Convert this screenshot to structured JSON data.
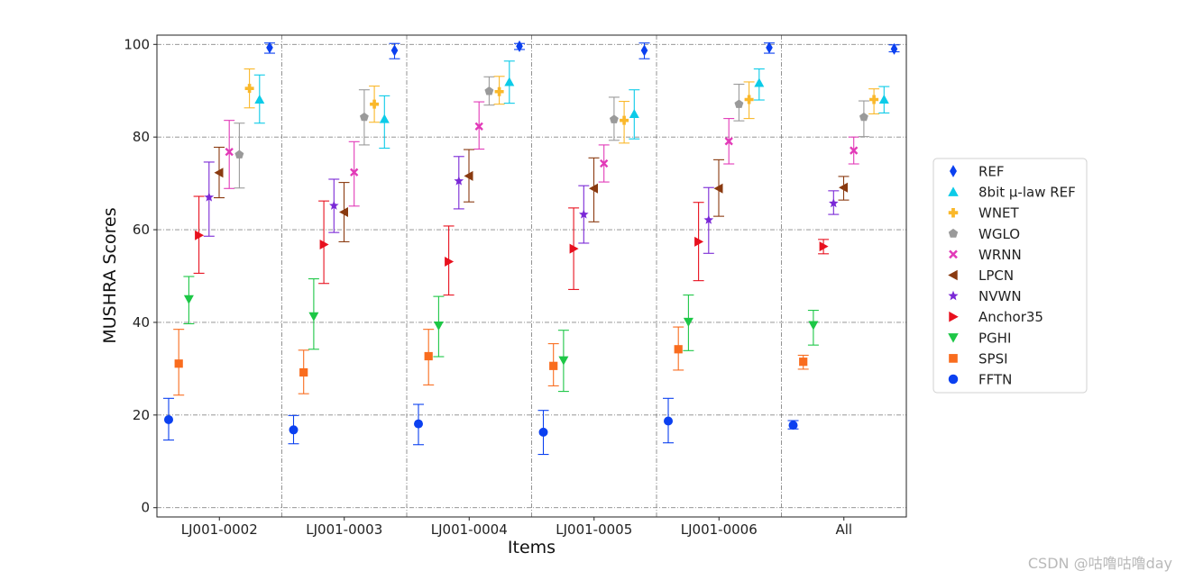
{
  "chart_data": {
    "type": "scatter",
    "subtype": "point-with-error-bars",
    "xlabel": "Items",
    "ylabel": "MUSHRA Scores",
    "categories": [
      "LJ001-0002",
      "LJ001-0003",
      "LJ001-0004",
      "LJ001-0005",
      "LJ001-0006",
      "All"
    ],
    "ylim": [
      -2,
      102
    ],
    "yticks": [
      0,
      20,
      40,
      60,
      80,
      100
    ],
    "grid": "dash-dot",
    "legend_position": "center-right",
    "series": [
      {
        "name": "FFTN",
        "color": "#0b40f0",
        "marker": "circle",
        "values": [
          19,
          16.8,
          18.1,
          16.3,
          18.7,
          17.8
        ],
        "err_low": [
          14.6,
          13.8,
          13.6,
          11.5,
          14,
          17
        ],
        "err_high": [
          23.6,
          19.9,
          22.3,
          21,
          23.6,
          18.8
        ]
      },
      {
        "name": "SPSI",
        "color": "#f96c1e",
        "marker": "square",
        "values": [
          31.1,
          29.2,
          32.7,
          30.6,
          34.2,
          31.5
        ],
        "err_low": [
          24.3,
          24.6,
          26.5,
          26.3,
          29.7,
          29.9
        ],
        "err_high": [
          38.5,
          34,
          38.5,
          35.4,
          39,
          32.9
        ]
      },
      {
        "name": "PGHI",
        "color": "#1dc746",
        "marker": "triangle-down",
        "values": [
          45,
          41.3,
          39.3,
          31.8,
          40.1,
          39.4
        ],
        "err_low": [
          39.7,
          34.2,
          32.6,
          25.1,
          33.9,
          35.1
        ],
        "err_high": [
          49.9,
          49.4,
          45.6,
          38.3,
          45.9,
          42.6
        ]
      },
      {
        "name": "Anchor35",
        "color": "#e8101e",
        "marker": "triangle-right",
        "values": [
          58.8,
          56.8,
          53.1,
          55.9,
          57.4,
          56.4
        ],
        "err_low": [
          50.6,
          48.4,
          45.9,
          47.1,
          49,
          54.8
        ],
        "err_high": [
          67.2,
          66.2,
          60.8,
          64.7,
          65.9,
          57.9
        ]
      },
      {
        "name": "NVWN",
        "color": "#7a28d6",
        "marker": "star",
        "values": [
          67,
          65.2,
          70.5,
          63.3,
          62.1,
          65.7
        ],
        "err_low": [
          58.6,
          59.4,
          64.5,
          57.1,
          54.9,
          63.3
        ],
        "err_high": [
          74.6,
          70.9,
          75.8,
          69.5,
          69.1,
          68.4
        ]
      },
      {
        "name": "LPCN",
        "color": "#8a3a10",
        "marker": "triangle-left",
        "values": [
          72.3,
          63.8,
          71.6,
          68.9,
          68.9,
          69.1
        ],
        "err_low": [
          66.9,
          57.4,
          66,
          61.7,
          62.9,
          66.4
        ],
        "err_high": [
          77.8,
          70.2,
          77.3,
          75.5,
          75.1,
          71.5
        ]
      },
      {
        "name": "WRNN",
        "color": "#e23ab8",
        "marker": "x",
        "values": [
          76.8,
          72.4,
          82.3,
          74.3,
          79.1,
          77.1
        ],
        "err_low": [
          68.9,
          65.1,
          77.4,
          70.3,
          74.2,
          74.2
        ],
        "err_high": [
          83.6,
          79,
          87.6,
          78.3,
          84,
          80
        ]
      },
      {
        "name": "WGLO",
        "color": "#9a9a9a",
        "marker": "pentagon",
        "values": [
          76.2,
          84.3,
          89.9,
          83.8,
          87.1,
          84.3
        ],
        "err_low": [
          69,
          78.3,
          86.9,
          79.3,
          83.5,
          80.1
        ],
        "err_high": [
          83,
          90.2,
          93,
          88.6,
          91.4,
          87.8
        ]
      },
      {
        "name": "WNET",
        "color": "#fab82a",
        "marker": "plus",
        "values": [
          90.5,
          87.1,
          89.8,
          83.6,
          88.1,
          88.1
        ],
        "err_low": [
          86.3,
          83.2,
          87.1,
          78.7,
          84,
          85
        ],
        "err_high": [
          94.7,
          91,
          93.1,
          87.7,
          91.9,
          90.4
        ]
      },
      {
        "name": "8bit µ-law REF",
        "color": "#0ccbe8",
        "marker": "triangle-up",
        "values": [
          88.1,
          83.9,
          91.9,
          85,
          91.7,
          88.1
        ],
        "err_low": [
          83,
          77.6,
          87.3,
          79.6,
          88,
          85.2
        ],
        "err_high": [
          93.4,
          88.9,
          96.4,
          90.2,
          94.7,
          90.9
        ]
      },
      {
        "name": "REF",
        "color": "#0b40f0",
        "marker": "thin-diamond",
        "values": [
          99.3,
          98.7,
          99.6,
          98.7,
          99.3,
          99
        ],
        "err_low": [
          98.1,
          96.9,
          98.9,
          96.9,
          98.1,
          98.4
        ],
        "err_high": [
          100.3,
          100.2,
          100.2,
          100.3,
          100.3,
          99.9
        ]
      }
    ]
  },
  "legend_order": [
    "REF",
    "8bit µ-law REF",
    "WNET",
    "WGLO",
    "WRNN",
    "LPCN",
    "NVWN",
    "Anchor35",
    "PGHI",
    "SPSI",
    "FFTN"
  ],
  "watermark": "CSDN @咕噜咕噜day"
}
